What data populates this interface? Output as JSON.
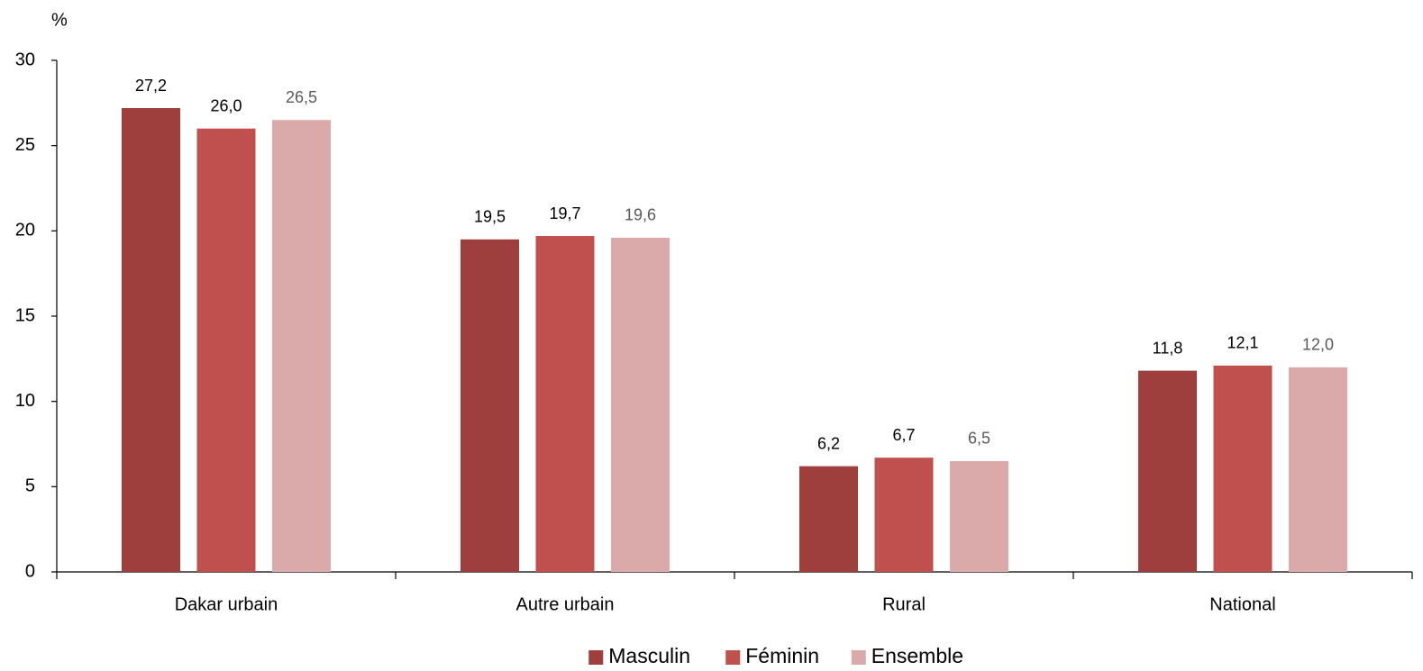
{
  "chart_data": {
    "type": "bar",
    "y_label": "%",
    "categories": [
      "Dakar urbain",
      "Autre urbain",
      "Rural",
      "National"
    ],
    "series": [
      {
        "name": "Masculin",
        "color": "#9e3f3d",
        "label_color": "#000000",
        "values": [
          27.2,
          19.5,
          6.2,
          11.8
        ],
        "value_labels": [
          "27,2",
          "19,5",
          "6,2",
          "11,8"
        ]
      },
      {
        "name": "Féminin",
        "color": "#c0504d",
        "label_color": "#000000",
        "values": [
          26.0,
          19.7,
          6.7,
          12.1
        ],
        "value_labels": [
          "26,0",
          "19,7",
          "6,7",
          "12,1"
        ]
      },
      {
        "name": "Ensemble",
        "color": "#d9aaa9",
        "label_color": "#595959",
        "values": [
          26.5,
          19.6,
          6.5,
          12.0
        ],
        "value_labels": [
          "26,5",
          "19,6",
          "6,5",
          "12,0"
        ]
      }
    ],
    "ylim": [
      0,
      30
    ],
    "yticks": [
      0,
      5,
      10,
      15,
      20,
      25,
      30
    ],
    "grid": false,
    "legend": "bottom"
  }
}
